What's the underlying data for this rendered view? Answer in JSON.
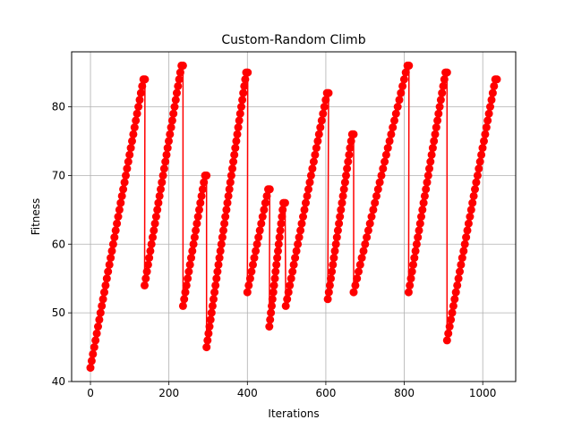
{
  "chart_data": {
    "type": "line",
    "title": "Custom-Random Climb",
    "xlabel": "Iterations",
    "ylabel": "Fitness",
    "xlim": [
      -48,
      1084
    ],
    "ylim": [
      40,
      88
    ],
    "xticks": [
      0,
      200,
      400,
      600,
      800,
      1000
    ],
    "yticks": [
      40,
      50,
      60,
      70,
      80
    ],
    "grid": true,
    "line_color": "#ff0000",
    "marker": "circle",
    "segments": [
      {
        "x_start": 0,
        "y_start": 42,
        "x_end": 135,
        "y_end": 84
      },
      {
        "x_start": 138,
        "y_start": 54,
        "x_end": 232,
        "y_end": 86
      },
      {
        "x_start": 236,
        "y_start": 51,
        "x_end": 292,
        "y_end": 70
      },
      {
        "x_start": 296,
        "y_start": 45,
        "x_end": 397,
        "y_end": 85
      },
      {
        "x_start": 400,
        "y_start": 53,
        "x_end": 453,
        "y_end": 68
      },
      {
        "x_start": 456,
        "y_start": 48,
        "x_end": 492,
        "y_end": 66
      },
      {
        "x_start": 498,
        "y_start": 51,
        "x_end": 603,
        "y_end": 82
      },
      {
        "x_start": 605,
        "y_start": 52,
        "x_end": 667,
        "y_end": 76
      },
      {
        "x_start": 671,
        "y_start": 53,
        "x_end": 808,
        "y_end": 86
      },
      {
        "x_start": 811,
        "y_start": 53,
        "x_end": 905,
        "y_end": 85
      },
      {
        "x_start": 909,
        "y_start": 46,
        "x_end": 1032,
        "y_end": 84
      }
    ]
  }
}
